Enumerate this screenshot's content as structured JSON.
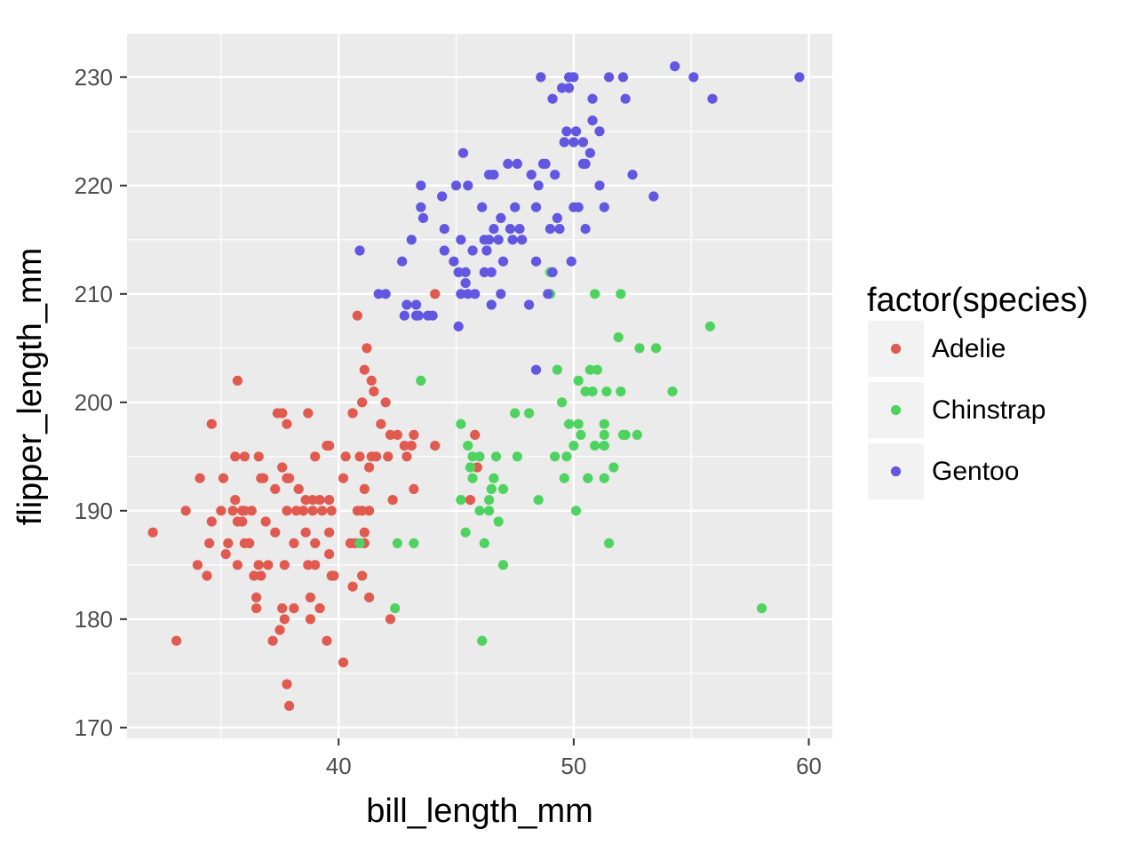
{
  "chart_data": {
    "type": "scatter",
    "xlabel": "bill_length_mm",
    "ylabel": "flipper_length_mm",
    "xlim": [
      31.0,
      61.0
    ],
    "ylim": [
      169.0,
      234.0
    ],
    "x_ticks": [
      40,
      50,
      60
    ],
    "y_ticks": [
      170,
      180,
      190,
      200,
      210,
      220,
      230
    ],
    "grid": true,
    "legend": {
      "title": "factor(species)",
      "position": "right"
    },
    "series": [
      {
        "name": "Adelie",
        "color": "#e05a4f",
        "points": [
          [
            32.1,
            188
          ],
          [
            33.1,
            178
          ],
          [
            33.5,
            190
          ],
          [
            34.0,
            185
          ],
          [
            34.1,
            193
          ],
          [
            34.4,
            184
          ],
          [
            34.5,
            187
          ],
          [
            34.6,
            189
          ],
          [
            34.6,
            198
          ],
          [
            35.0,
            190
          ],
          [
            35.1,
            193
          ],
          [
            35.2,
            186
          ],
          [
            35.3,
            187
          ],
          [
            35.5,
            190
          ],
          [
            35.6,
            191
          ],
          [
            35.6,
            195
          ],
          [
            35.7,
            202
          ],
          [
            35.7,
            189
          ],
          [
            35.7,
            185
          ],
          [
            35.9,
            190
          ],
          [
            35.9,
            189
          ],
          [
            36.0,
            187
          ],
          [
            36.0,
            195
          ],
          [
            36.0,
            190
          ],
          [
            36.2,
            187
          ],
          [
            36.3,
            190
          ],
          [
            36.2,
            187
          ],
          [
            36.4,
            184
          ],
          [
            36.5,
            181
          ],
          [
            36.5,
            182
          ],
          [
            36.6,
            195
          ],
          [
            36.6,
            185
          ],
          [
            36.7,
            184
          ],
          [
            36.7,
            193
          ],
          [
            36.8,
            193
          ],
          [
            36.9,
            189
          ],
          [
            37.0,
            185
          ],
          [
            37.2,
            178
          ],
          [
            37.3,
            192
          ],
          [
            37.3,
            188
          ],
          [
            37.4,
            199
          ],
          [
            37.6,
            199
          ],
          [
            37.5,
            179
          ],
          [
            37.6,
            181
          ],
          [
            37.7,
            180
          ],
          [
            37.6,
            194
          ],
          [
            37.7,
            185
          ],
          [
            37.8,
            198
          ],
          [
            37.8,
            190
          ],
          [
            37.8,
            193
          ],
          [
            37.8,
            174
          ],
          [
            37.9,
            172
          ],
          [
            37.9,
            193
          ],
          [
            38.1,
            181
          ],
          [
            38.1,
            187
          ],
          [
            38.2,
            190
          ],
          [
            38.3,
            192
          ],
          [
            38.5,
            190
          ],
          [
            38.5,
            190
          ],
          [
            38.6,
            188
          ],
          [
            38.6,
            191
          ],
          [
            38.7,
            199
          ],
          [
            38.7,
            185
          ],
          [
            38.8,
            182
          ],
          [
            38.8,
            180
          ],
          [
            38.9,
            190
          ],
          [
            38.9,
            191
          ],
          [
            39.0,
            187
          ],
          [
            39.0,
            185
          ],
          [
            39.0,
            195
          ],
          [
            39.2,
            181
          ],
          [
            39.2,
            191
          ],
          [
            39.3,
            190
          ],
          [
            39.5,
            196
          ],
          [
            39.6,
            191
          ],
          [
            39.6,
            186
          ],
          [
            39.6,
            196
          ],
          [
            39.5,
            178
          ],
          [
            39.6,
            188
          ],
          [
            39.7,
            190
          ],
          [
            39.8,
            184
          ],
          [
            39.7,
            184
          ],
          [
            40.2,
            176
          ],
          [
            40.2,
            193
          ],
          [
            40.3,
            195
          ],
          [
            40.5,
            187
          ],
          [
            40.6,
            199
          ],
          [
            40.6,
            183
          ],
          [
            40.7,
            187
          ],
          [
            40.8,
            208
          ],
          [
            40.8,
            190
          ],
          [
            40.9,
            195
          ],
          [
            41.0,
            184
          ],
          [
            41.0,
            200
          ],
          [
            41.1,
            203
          ],
          [
            41.1,
            187
          ],
          [
            41.1,
            192
          ],
          [
            41.1,
            188
          ],
          [
            41.3,
            194
          ],
          [
            41.4,
            202
          ],
          [
            41.4,
            195
          ],
          [
            41.5,
            201
          ],
          [
            41.6,
            195
          ],
          [
            41.8,
            198
          ],
          [
            42.0,
            200
          ],
          [
            42.1,
            195
          ],
          [
            42.2,
            180
          ],
          [
            42.2,
            197
          ],
          [
            42.3,
            191
          ],
          [
            42.5,
            197
          ],
          [
            42.8,
            196
          ],
          [
            42.9,
            195
          ],
          [
            43.1,
            196
          ],
          [
            43.2,
            197
          ],
          [
            43.2,
            192
          ],
          [
            44.1,
            196
          ],
          [
            44.1,
            210
          ],
          [
            41.2,
            205
          ],
          [
            41.0,
            190
          ],
          [
            41.3,
            190
          ],
          [
            45.8,
            197
          ],
          [
            45.6,
            191
          ],
          [
            45.9,
            194
          ],
          [
            41.3,
            182
          ]
        ]
      },
      {
        "name": "Chinstrap",
        "color": "#4fd360",
        "points": [
          [
            40.9,
            187
          ],
          [
            42.4,
            181
          ],
          [
            42.5,
            187
          ],
          [
            43.2,
            187
          ],
          [
            43.5,
            202
          ],
          [
            45.2,
            198
          ],
          [
            45.2,
            191
          ],
          [
            45.4,
            188
          ],
          [
            45.5,
            196
          ],
          [
            45.6,
            194
          ],
          [
            45.7,
            195
          ],
          [
            45.7,
            193
          ],
          [
            46.0,
            195
          ],
          [
            46.0,
            190
          ],
          [
            46.1,
            178
          ],
          [
            46.2,
            187
          ],
          [
            46.4,
            191
          ],
          [
            46.4,
            190
          ],
          [
            46.5,
            192
          ],
          [
            46.6,
            193
          ],
          [
            46.7,
            195
          ],
          [
            46.8,
            189
          ],
          [
            47.0,
            192
          ],
          [
            47.0,
            185
          ],
          [
            47.5,
            199
          ],
          [
            47.6,
            195
          ],
          [
            48.1,
            199
          ],
          [
            48.5,
            191
          ],
          [
            49.0,
            212
          ],
          [
            49.0,
            210
          ],
          [
            49.2,
            195
          ],
          [
            49.3,
            203
          ],
          [
            49.5,
            200
          ],
          [
            49.6,
            193
          ],
          [
            49.7,
            195
          ],
          [
            49.8,
            198
          ],
          [
            50.0,
            196
          ],
          [
            50.1,
            190
          ],
          [
            50.2,
            198
          ],
          [
            50.2,
            202
          ],
          [
            50.3,
            197
          ],
          [
            50.5,
            201
          ],
          [
            50.6,
            193
          ],
          [
            50.7,
            203
          ],
          [
            50.8,
            201
          ],
          [
            50.9,
            196
          ],
          [
            51.0,
            203
          ],
          [
            51.3,
            197
          ],
          [
            51.3,
            193
          ],
          [
            51.4,
            201
          ],
          [
            51.5,
            187
          ],
          [
            51.7,
            194
          ],
          [
            51.9,
            206
          ],
          [
            52.0,
            201
          ],
          [
            52.1,
            197
          ],
          [
            52.0,
            210
          ],
          [
            52.2,
            197
          ],
          [
            52.7,
            197
          ],
          [
            52.8,
            205
          ],
          [
            53.5,
            205
          ],
          [
            54.2,
            201
          ],
          [
            55.8,
            207
          ],
          [
            58.0,
            181
          ],
          [
            50.9,
            210
          ],
          [
            51.3,
            198
          ],
          [
            51.3,
            196
          ]
        ]
      },
      {
        "name": "Gentoo",
        "color": "#6157e0",
        "points": [
          [
            40.9,
            214
          ],
          [
            41.7,
            210
          ],
          [
            42.0,
            210
          ],
          [
            42.7,
            213
          ],
          [
            42.8,
            208
          ],
          [
            42.9,
            209
          ],
          [
            43.1,
            215
          ],
          [
            43.3,
            208
          ],
          [
            43.3,
            209
          ],
          [
            43.4,
            208
          ],
          [
            43.5,
            218
          ],
          [
            43.6,
            217
          ],
          [
            43.5,
            220
          ],
          [
            43.8,
            208
          ],
          [
            44.0,
            208
          ],
          [
            44.4,
            219
          ],
          [
            44.5,
            214
          ],
          [
            44.5,
            216
          ],
          [
            44.9,
            213
          ],
          [
            45.0,
            220
          ],
          [
            45.1,
            212
          ],
          [
            45.1,
            207
          ],
          [
            45.2,
            215
          ],
          [
            45.2,
            210
          ],
          [
            45.3,
            223
          ],
          [
            45.4,
            211
          ],
          [
            45.4,
            212
          ],
          [
            45.5,
            210
          ],
          [
            45.5,
            220
          ],
          [
            45.7,
            214
          ],
          [
            45.8,
            210
          ],
          [
            46.1,
            218
          ],
          [
            46.2,
            212
          ],
          [
            46.2,
            215
          ],
          [
            46.3,
            214
          ],
          [
            46.4,
            215
          ],
          [
            46.4,
            221
          ],
          [
            46.5,
            212
          ],
          [
            46.5,
            209
          ],
          [
            46.6,
            216
          ],
          [
            46.6,
            221
          ],
          [
            46.8,
            215
          ],
          [
            46.9,
            217
          ],
          [
            47.2,
            222
          ],
          [
            47.3,
            216
          ],
          [
            47.4,
            215
          ],
          [
            47.5,
            218
          ],
          [
            47.6,
            222
          ],
          [
            47.7,
            216
          ],
          [
            47.8,
            215
          ],
          [
            48.1,
            209
          ],
          [
            48.2,
            221
          ],
          [
            48.4,
            213
          ],
          [
            48.4,
            218
          ],
          [
            48.5,
            220
          ],
          [
            48.6,
            230
          ],
          [
            48.7,
            222
          ],
          [
            48.8,
            222
          ],
          [
            49.0,
            216
          ],
          [
            49.1,
            228
          ],
          [
            49.1,
            212
          ],
          [
            49.2,
            221
          ],
          [
            49.3,
            217
          ],
          [
            49.4,
            216
          ],
          [
            49.5,
            229
          ],
          [
            49.6,
            224
          ],
          [
            49.7,
            225
          ],
          [
            49.8,
            229
          ],
          [
            49.9,
            213
          ],
          [
            50.0,
            218
          ],
          [
            50.0,
            224
          ],
          [
            50.1,
            225
          ],
          [
            50.2,
            218
          ],
          [
            50.4,
            222
          ],
          [
            50.4,
            224
          ],
          [
            50.5,
            222
          ],
          [
            50.5,
            216
          ],
          [
            50.7,
            223
          ],
          [
            50.8,
            228
          ],
          [
            50.8,
            226
          ],
          [
            51.1,
            220
          ],
          [
            51.1,
            225
          ],
          [
            51.3,
            218
          ],
          [
            51.5,
            230
          ],
          [
            52.1,
            230
          ],
          [
            52.2,
            228
          ],
          [
            52.5,
            221
          ],
          [
            53.4,
            219
          ],
          [
            54.3,
            231
          ],
          [
            55.1,
            230
          ],
          [
            55.9,
            228
          ],
          [
            59.6,
            230
          ],
          [
            48.4,
            203
          ],
          [
            50.0,
            230
          ],
          [
            49.8,
            230
          ],
          [
            48.9,
            210
          ],
          [
            47.0,
            213
          ],
          [
            46.9,
            210
          ]
        ]
      }
    ]
  }
}
